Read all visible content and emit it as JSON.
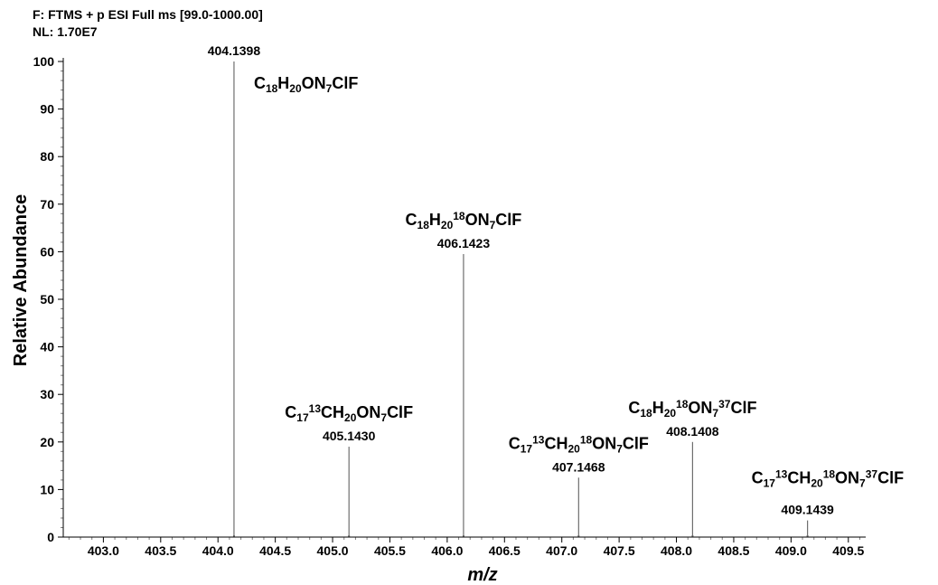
{
  "header": {
    "scan_filter": "F: FTMS + p ESI Full ms [99.0-1000.00]",
    "normalization": "NL: 1.70E7"
  },
  "chart_data": {
    "type": "line",
    "xlabel": "m/z",
    "ylabel": "Relative Abundance",
    "xlim": [
      402.65,
      409.62
    ],
    "ylim": [
      0,
      100
    ],
    "x_ticks": [
      403.0,
      403.5,
      404.0,
      404.5,
      405.0,
      405.5,
      406.0,
      406.5,
      407.0,
      407.5,
      408.0,
      408.5,
      409.0,
      409.5
    ],
    "x_tick_labels": [
      "403.0",
      "403.5",
      "404.0",
      "404.5",
      "405.0",
      "405.5",
      "406.0",
      "406.5",
      "407.0",
      "407.5",
      "408.0",
      "408.5",
      "409.0",
      "409.5"
    ],
    "y_ticks": [
      0,
      10,
      20,
      30,
      40,
      50,
      60,
      70,
      80,
      90,
      100
    ],
    "y_tick_labels": [
      "0",
      "10",
      "20",
      "30",
      "40",
      "50",
      "60",
      "70",
      "80",
      "90",
      "100"
    ],
    "grid": false,
    "series": [
      {
        "peaks": [
          {
            "mz": 404.1398,
            "mz_label": "404.1398",
            "abundance": 100,
            "formula": [
              {
                "t": "C",
                "s": null
              },
              {
                "t": "18",
                "s": "sub"
              },
              {
                "t": "H",
                "s": null
              },
              {
                "t": "20",
                "s": "sub"
              },
              {
                "t": "ON",
                "s": null
              },
              {
                "t": "7",
                "s": "sub"
              },
              {
                "t": "ClF",
                "s": null
              }
            ]
          },
          {
            "mz": 405.143,
            "mz_label": "405.1430",
            "abundance": 19,
            "formula": [
              {
                "t": "C",
                "s": null
              },
              {
                "t": "17",
                "s": "sub"
              },
              {
                "t": "13",
                "s": "sup"
              },
              {
                "t": "CH",
                "s": null
              },
              {
                "t": "20",
                "s": "sub"
              },
              {
                "t": "ON",
                "s": null
              },
              {
                "t": "7",
                "s": "sub"
              },
              {
                "t": "ClF",
                "s": null
              }
            ]
          },
          {
            "mz": 406.1423,
            "mz_label": "406.1423",
            "abundance": 59.5,
            "formula": [
              {
                "t": "C",
                "s": null
              },
              {
                "t": "18",
                "s": "sub"
              },
              {
                "t": "H",
                "s": null
              },
              {
                "t": "20",
                "s": "sub"
              },
              {
                "t": "18",
                "s": "sup"
              },
              {
                "t": "ON",
                "s": null
              },
              {
                "t": "7",
                "s": "sub"
              },
              {
                "t": "ClF",
                "s": null
              }
            ]
          },
          {
            "mz": 407.1468,
            "mz_label": "407.1468",
            "abundance": 12.5,
            "formula": [
              {
                "t": "C",
                "s": null
              },
              {
                "t": "17",
                "s": "sub"
              },
              {
                "t": "13",
                "s": "sup"
              },
              {
                "t": "CH",
                "s": null
              },
              {
                "t": "20",
                "s": "sub"
              },
              {
                "t": "18",
                "s": "sup"
              },
              {
                "t": "ON",
                "s": null
              },
              {
                "t": "7",
                "s": "sub"
              },
              {
                "t": "ClF",
                "s": null
              }
            ]
          },
          {
            "mz": 408.1408,
            "mz_label": "408.1408",
            "abundance": 20,
            "formula": [
              {
                "t": "C",
                "s": null
              },
              {
                "t": "18",
                "s": "sub"
              },
              {
                "t": "H",
                "s": null
              },
              {
                "t": "20",
                "s": "sub"
              },
              {
                "t": "18",
                "s": "sup"
              },
              {
                "t": "ON",
                "s": null
              },
              {
                "t": "7",
                "s": "sub"
              },
              {
                "t": "37",
                "s": "sup"
              },
              {
                "t": "ClF",
                "s": null
              }
            ]
          },
          {
            "mz": 409.1439,
            "mz_label": "409.1439",
            "abundance": 3.5,
            "formula": [
              {
                "t": "C",
                "s": null
              },
              {
                "t": "17",
                "s": "sub"
              },
              {
                "t": "13",
                "s": "sup"
              },
              {
                "t": "CH",
                "s": null
              },
              {
                "t": "20",
                "s": "sub"
              },
              {
                "t": "18",
                "s": "sup"
              },
              {
                "t": "ON",
                "s": null
              },
              {
                "t": "7",
                "s": "sub"
              },
              {
                "t": "37",
                "s": "sup"
              },
              {
                "t": "ClF",
                "s": null
              }
            ]
          }
        ]
      }
    ],
    "colors": {
      "peak": "#6e6e6e",
      "axis": "#000000",
      "minor_tick": "#808080"
    }
  }
}
